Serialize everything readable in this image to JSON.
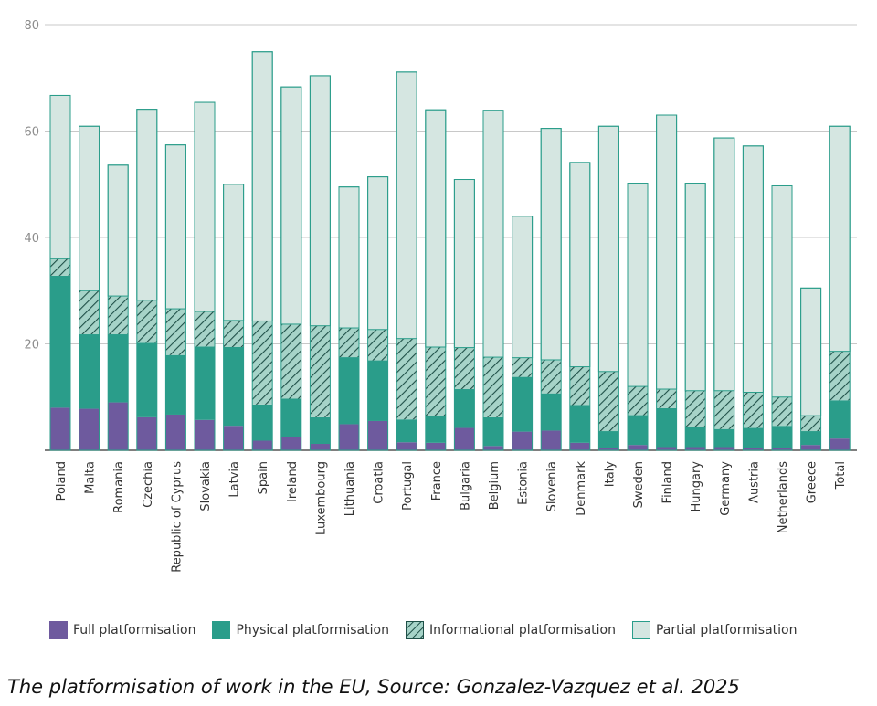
{
  "chart_data": {
    "type": "bar",
    "stacked": true,
    "categories": [
      "Poland",
      "Malta",
      "Romania",
      "Czechia",
      "Republic of Cyprus",
      "Slovakia",
      "Latvia",
      "Spain",
      "Ireland",
      "Luxembourg",
      "Lithuania",
      "Croatia",
      "Portugal",
      "France",
      "Bulgaria",
      "Belgium",
      "Estonia",
      "Slovenia",
      "Denmark",
      "Italy",
      "Sweden",
      "Finland",
      "Hungary",
      "Germany",
      "Austria",
      "Netherlands",
      "Greece",
      "Total"
    ],
    "series": [
      {
        "name": "Full platformisation",
        "color": "#6e5a9e",
        "pattern": "solid",
        "values": [
          8,
          7.8,
          9,
          6.2,
          6.7,
          5.7,
          4.6,
          1.8,
          2.5,
          1.2,
          4.9,
          5.5,
          1.5,
          1.4,
          4.2,
          0.8,
          3.5,
          3.7,
          1.4,
          0.4,
          1,
          0.6,
          0.6,
          0.6,
          0.5,
          0.5,
          1,
          2.2
        ]
      },
      {
        "name": "Physical platformisation",
        "color": "#2a9d8a",
        "pattern": "solid",
        "values": [
          24.8,
          14,
          12.8,
          14,
          11.2,
          13.8,
          14.8,
          6.8,
          7.2,
          5,
          12.6,
          11.4,
          4.3,
          5,
          7.3,
          5.4,
          10.3,
          7,
          7.1,
          3.2,
          5.6,
          7.3,
          3.8,
          3.4,
          3.7,
          4.1,
          2.6,
          7.2
        ]
      },
      {
        "name": "Informational platformisation",
        "color": "#2a9d8a",
        "pattern": "hatched",
        "values": [
          3.2,
          8.2,
          7.2,
          8,
          8.7,
          6.6,
          5,
          15.7,
          14,
          17.2,
          5.5,
          5.8,
          15.2,
          13,
          7.8,
          11.3,
          3.6,
          6.3,
          7.2,
          11.2,
          5.4,
          3.6,
          6.8,
          7.2,
          6.7,
          5.4,
          2.9,
          9.2
        ]
      },
      {
        "name": "Partial platformisation",
        "color": "#d5e6e1",
        "pattern": "solid",
        "values": [
          30.7,
          30.9,
          24.6,
          35.9,
          30.8,
          39.3,
          25.6,
          50.6,
          44.6,
          47,
          26.5,
          28.7,
          50.1,
          44.6,
          31.6,
          46.4,
          26.6,
          43.5,
          38.4,
          46.1,
          38.2,
          51.5,
          39,
          47.5,
          46.3,
          39.7,
          24,
          42.3
        ]
      }
    ],
    "ylim": [
      0,
      80
    ],
    "yticks": [
      0,
      20,
      40,
      60,
      80
    ],
    "grid": true,
    "legend_position": "bottom"
  },
  "caption": "The platformisation of work in the EU, Source: Gonzalez-Vazquez et al. 2025"
}
